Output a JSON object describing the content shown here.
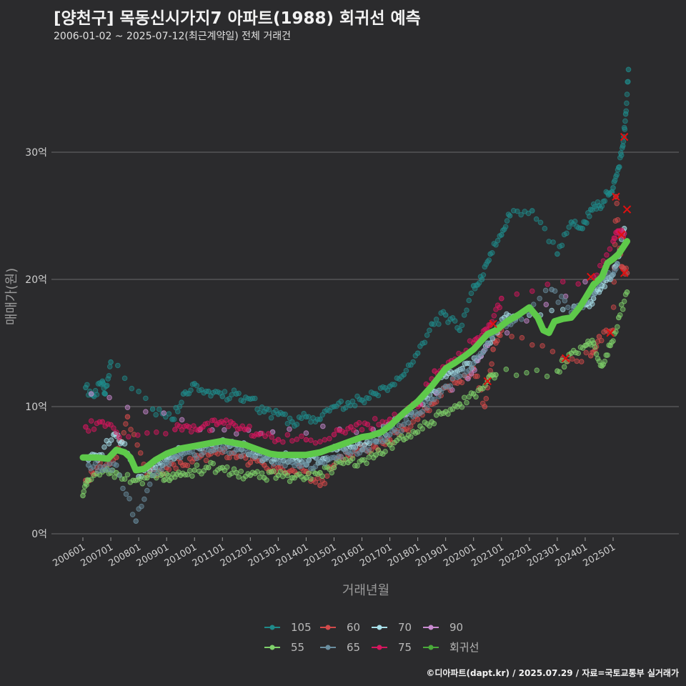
{
  "title": "[양천구] 목동신시가지7 아파트(1988) 회귀선 예측",
  "subtitle": "2006-01-02 ~ 2025-07-12(최근계약일) 전체 거래건",
  "footer": "©디아파트(dapt.kr) / 2025.07.29 / 자료=국토교통부 실거래가",
  "chart_data": {
    "type": "scatter",
    "xlabel": "거래년월",
    "ylabel": "매매가(원)",
    "ylim": [
      0,
      37
    ],
    "xlim": [
      2005.4,
      2026.2
    ],
    "y_ticks": [
      {
        "value": 0,
        "label": "0억"
      },
      {
        "value": 10,
        "label": "10억"
      },
      {
        "value": 20,
        "label": "20억"
      },
      {
        "value": 30,
        "label": "30억"
      }
    ],
    "x_ticks": [
      "200601",
      "200701",
      "200801",
      "200901",
      "201001",
      "201101",
      "201201",
      "201301",
      "201401",
      "201501",
      "201601",
      "201701",
      "201801",
      "201901",
      "202001",
      "202101",
      "202201",
      "202301",
      "202401",
      "202501"
    ],
    "legend": [
      {
        "name": "105",
        "color": "#1f8a8a"
      },
      {
        "name": "60",
        "color": "#d24a4a"
      },
      {
        "name": "70",
        "color": "#a8e0ea"
      },
      {
        "name": "90",
        "color": "#c98ad0"
      },
      {
        "name": "55",
        "color": "#7fd16a"
      },
      {
        "name": "65",
        "color": "#6a8ea0"
      },
      {
        "name": "75",
        "color": "#d6165e"
      },
      {
        "name": "회귀선",
        "color": "#4aaa3a"
      }
    ],
    "regression_line": {
      "name": "회귀선",
      "color": "#5ec94a",
      "x": [
        2006.0,
        2006.5,
        2006.9,
        2007.2,
        2007.5,
        2007.7,
        2007.9,
        2008.2,
        2008.6,
        2009.0,
        2009.5,
        2010.0,
        2010.5,
        2011.0,
        2011.3,
        2011.8,
        2012.3,
        2012.7,
        2013.0,
        2013.5,
        2014.0,
        2014.5,
        2015.0,
        2015.5,
        2016.0,
        2016.3,
        2016.7,
        2017.0,
        2017.5,
        2018.0,
        2018.5,
        2019.0,
        2019.3,
        2019.7,
        2020.0,
        2020.5,
        2020.8,
        2021.2,
        2021.6,
        2022.0,
        2022.3,
        2022.5,
        2022.7,
        2022.9,
        2023.2,
        2023.5,
        2023.8,
        2024.0,
        2024.3,
        2024.6,
        2024.8,
        2025.0,
        2025.2,
        2025.5
      ],
      "y": [
        6.0,
        6.0,
        5.9,
        6.6,
        6.4,
        6.0,
        5.0,
        5.1,
        5.8,
        6.3,
        6.7,
        6.9,
        7.1,
        7.3,
        7.2,
        7.0,
        6.6,
        6.3,
        6.2,
        6.2,
        6.2,
        6.4,
        6.8,
        7.2,
        7.6,
        7.7,
        8.0,
        8.5,
        9.5,
        10.4,
        11.6,
        13.0,
        13.4,
        14.0,
        14.5,
        15.7,
        16.0,
        16.7,
        17.2,
        17.8,
        17.0,
        16.0,
        15.8,
        16.7,
        16.9,
        17.0,
        17.8,
        18.5,
        19.6,
        20.2,
        21.3,
        21.6,
        22.0,
        23.0
      ]
    },
    "series": [
      {
        "name": "105",
        "color": "#1f8a8a",
        "x": [
          2006.1,
          2006.4,
          2006.7,
          2006.8,
          2007.0,
          2008.5,
          2009.2,
          2009.6,
          2010.0,
          2010.5,
          2011.0,
          2011.5,
          2012.0,
          2012.5,
          2013.0,
          2013.5,
          2014.0,
          2014.5,
          2015.0,
          2015.5,
          2016.0,
          2016.5,
          2017.0,
          2017.5,
          2018.0,
          2018.5,
          2019.0,
          2019.5,
          2020.0,
          2020.3,
          2020.6,
          2021.0,
          2021.3,
          2022.1,
          2023.0,
          2023.5,
          2023.9,
          2024.2,
          2024.5,
          2024.8,
          2025.0,
          2025.2,
          2025.35,
          2025.45,
          2025.55
        ],
        "y": [
          11.5,
          10.8,
          12.0,
          11.0,
          13.5,
          9.8,
          9.0,
          11.0,
          11.8,
          11.2,
          10.8,
          11.0,
          10.6,
          9.6,
          9.4,
          8.8,
          9.2,
          9.0,
          10.0,
          10.3,
          10.5,
          11.0,
          11.6,
          12.5,
          14.2,
          16.5,
          17.2,
          16.0,
          19.5,
          20.0,
          22.0,
          23.5,
          25.0,
          25.4,
          22.0,
          24.5,
          24.0,
          25.5,
          25.8,
          26.8,
          27.2,
          28.8,
          30.5,
          33.0,
          36.5
        ]
      },
      {
        "name": "60",
        "color": "#d24a4a",
        "x": [
          2006.1,
          2006.5,
          2007.2,
          2007.6,
          2008.3,
          2009.0,
          2009.5,
          2010.0,
          2010.5,
          2011.0,
          2011.5,
          2012.0,
          2012.5,
          2013.0,
          2013.5,
          2014.0,
          2014.5,
          2015.0,
          2015.5,
          2016.0,
          2016.5,
          2017.0,
          2017.5,
          2018.0,
          2018.5,
          2019.0,
          2019.5,
          2020.0,
          2020.4,
          2020.7,
          2021.0,
          2023.2,
          2024.2,
          2024.5,
          2025.0,
          2025.1,
          2025.3,
          2025.5
        ],
        "y": [
          4.2,
          5.2,
          6.0,
          9.2,
          4.6,
          5.2,
          5.6,
          5.9,
          6.2,
          6.4,
          6.0,
          5.6,
          5.4,
          5.2,
          5.0,
          4.9,
          3.8,
          5.4,
          6.2,
          6.6,
          6.8,
          7.4,
          8.2,
          9.0,
          10.2,
          11.5,
          12.0,
          13.0,
          10.0,
          14.5,
          16.0,
          13.8,
          14.0,
          15.5,
          16.0,
          26.5,
          21.0,
          20.5
        ]
      },
      {
        "name": "70",
        "color": "#a8e0ea",
        "x": [
          2006.2,
          2006.6,
          2007.1,
          2007.4,
          2008.0,
          2008.6,
          2009.1,
          2009.6,
          2010.1,
          2010.6,
          2011.1,
          2011.6,
          2012.1,
          2012.6,
          2013.1,
          2013.6,
          2014.1,
          2014.6,
          2015.1,
          2015.6,
          2016.1,
          2016.6,
          2017.1,
          2017.6,
          2018.1,
          2018.6,
          2019.1,
          2019.6,
          2020.1,
          2020.6,
          2021.1,
          2021.6,
          2024.0,
          2024.3,
          2024.6,
          2024.9,
          2025.2,
          2025.4
        ],
        "y": [
          5.8,
          6.2,
          7.8,
          7.2,
          4.5,
          5.2,
          6.0,
          6.6,
          6.8,
          7.0,
          7.2,
          7.0,
          6.4,
          6.0,
          6.0,
          6.0,
          5.8,
          5.9,
          6.6,
          6.8,
          7.0,
          7.8,
          8.6,
          9.4,
          10.2,
          11.2,
          12.6,
          13.0,
          13.6,
          15.0,
          17.0,
          17.2,
          18.0,
          18.5,
          19.5,
          20.0,
          21.8,
          24.0
        ]
      },
      {
        "name": "90",
        "color": "#c98ad0",
        "x": [
          2006.3,
          2010.2,
          2012.8,
          2016.4,
          2019.8,
          2020.5,
          2024.7
        ],
        "y": [
          11.0,
          8.2,
          8.0,
          8.2,
          12.2,
          14.8,
          20.5
        ]
      },
      {
        "name": "55",
        "color": "#7fd16a",
        "x": [
          2006.0,
          2006.2,
          2006.8,
          2007.2,
          2007.8,
          2008.3,
          2008.8,
          2009.1,
          2009.5,
          2010.0,
          2010.5,
          2011.0,
          2011.5,
          2012.0,
          2012.5,
          2013.0,
          2013.5,
          2014.0,
          2014.5,
          2015.0,
          2015.5,
          2016.0,
          2016.5,
          2017.0,
          2017.5,
          2018.0,
          2018.5,
          2019.0,
          2019.5,
          2020.0,
          2020.5,
          2020.8,
          2023.0,
          2023.5,
          2024.0,
          2024.3,
          2024.6,
          2024.9,
          2025.2,
          2025.5
        ],
        "y": [
          3.0,
          4.2,
          5.0,
          4.8,
          4.2,
          4.4,
          4.6,
          4.2,
          4.6,
          5.0,
          5.2,
          5.2,
          4.8,
          4.6,
          4.4,
          4.6,
          4.4,
          4.4,
          4.8,
          5.2,
          5.6,
          5.8,
          6.2,
          7.0,
          7.4,
          8.0,
          8.8,
          9.6,
          10.2,
          11.0,
          12.0,
          12.5,
          12.8,
          14.2,
          14.8,
          15.0,
          13.2,
          14.8,
          17.0,
          19.0
        ]
      },
      {
        "name": "65",
        "color": "#6a8ea0",
        "x": [
          2006.2,
          2006.7,
          2007.2,
          2007.9,
          2008.5,
          2009.0,
          2009.5,
          2010.0,
          2010.5,
          2011.0,
          2011.5,
          2012.0,
          2012.5,
          2013.0,
          2013.5,
          2014.0,
          2014.5,
          2015.0,
          2015.5,
          2016.0,
          2016.5,
          2017.0,
          2017.5,
          2018.0,
          2018.5,
          2019.0,
          2019.5,
          2020.0,
          2020.5,
          2021.0,
          2021.5,
          2022.8,
          2023.5,
          2024.0,
          2024.5,
          2025.0,
          2025.3
        ],
        "y": [
          5.4,
          5.0,
          5.4,
          1.0,
          4.6,
          5.6,
          6.0,
          6.2,
          6.6,
          6.8,
          6.6,
          6.2,
          6.0,
          5.6,
          5.6,
          5.4,
          5.6,
          6.0,
          6.4,
          6.6,
          7.2,
          7.8,
          8.6,
          9.4,
          10.6,
          11.6,
          12.4,
          13.4,
          15.0,
          16.4,
          16.8,
          19.2,
          17.4,
          18.2,
          19.6,
          20.4,
          22.4
        ]
      },
      {
        "name": "75",
        "color": "#d6165e",
        "x": [
          2006.1,
          2006.7,
          2007.3,
          2009.3,
          2009.8,
          2010.3,
          2010.8,
          2011.3,
          2011.8,
          2012.3,
          2013.0,
          2014.0,
          2015.0,
          2015.6,
          2016.2,
          2017.0,
          2018.0,
          2018.6,
          2019.2,
          2020.0,
          2020.3,
          2020.6,
          2021.0,
          2024.3,
          2025.0,
          2025.2,
          2025.4
        ],
        "y": [
          8.4,
          8.8,
          7.6,
          8.2,
          8.4,
          8.4,
          8.6,
          8.8,
          8.2,
          7.8,
          7.4,
          7.4,
          7.8,
          8.4,
          8.6,
          9.0,
          10.0,
          12.8,
          13.6,
          15.0,
          15.6,
          16.4,
          18.5,
          20.2,
          23.0,
          23.8,
          23.6
        ]
      }
    ],
    "outliers_x": [
      {
        "x": 2020.7,
        "y": 16.5
      },
      {
        "x": 2020.5,
        "y": 12.0
      },
      {
        "x": 2023.3,
        "y": 13.8
      },
      {
        "x": 2024.2,
        "y": 20.2
      },
      {
        "x": 2024.9,
        "y": 15.8
      },
      {
        "x": 2025.1,
        "y": 26.5
      },
      {
        "x": 2025.3,
        "y": 23.5
      },
      {
        "x": 2025.4,
        "y": 31.2
      },
      {
        "x": 2025.5,
        "y": 25.5
      },
      {
        "x": 2025.4,
        "y": 20.5
      }
    ]
  }
}
